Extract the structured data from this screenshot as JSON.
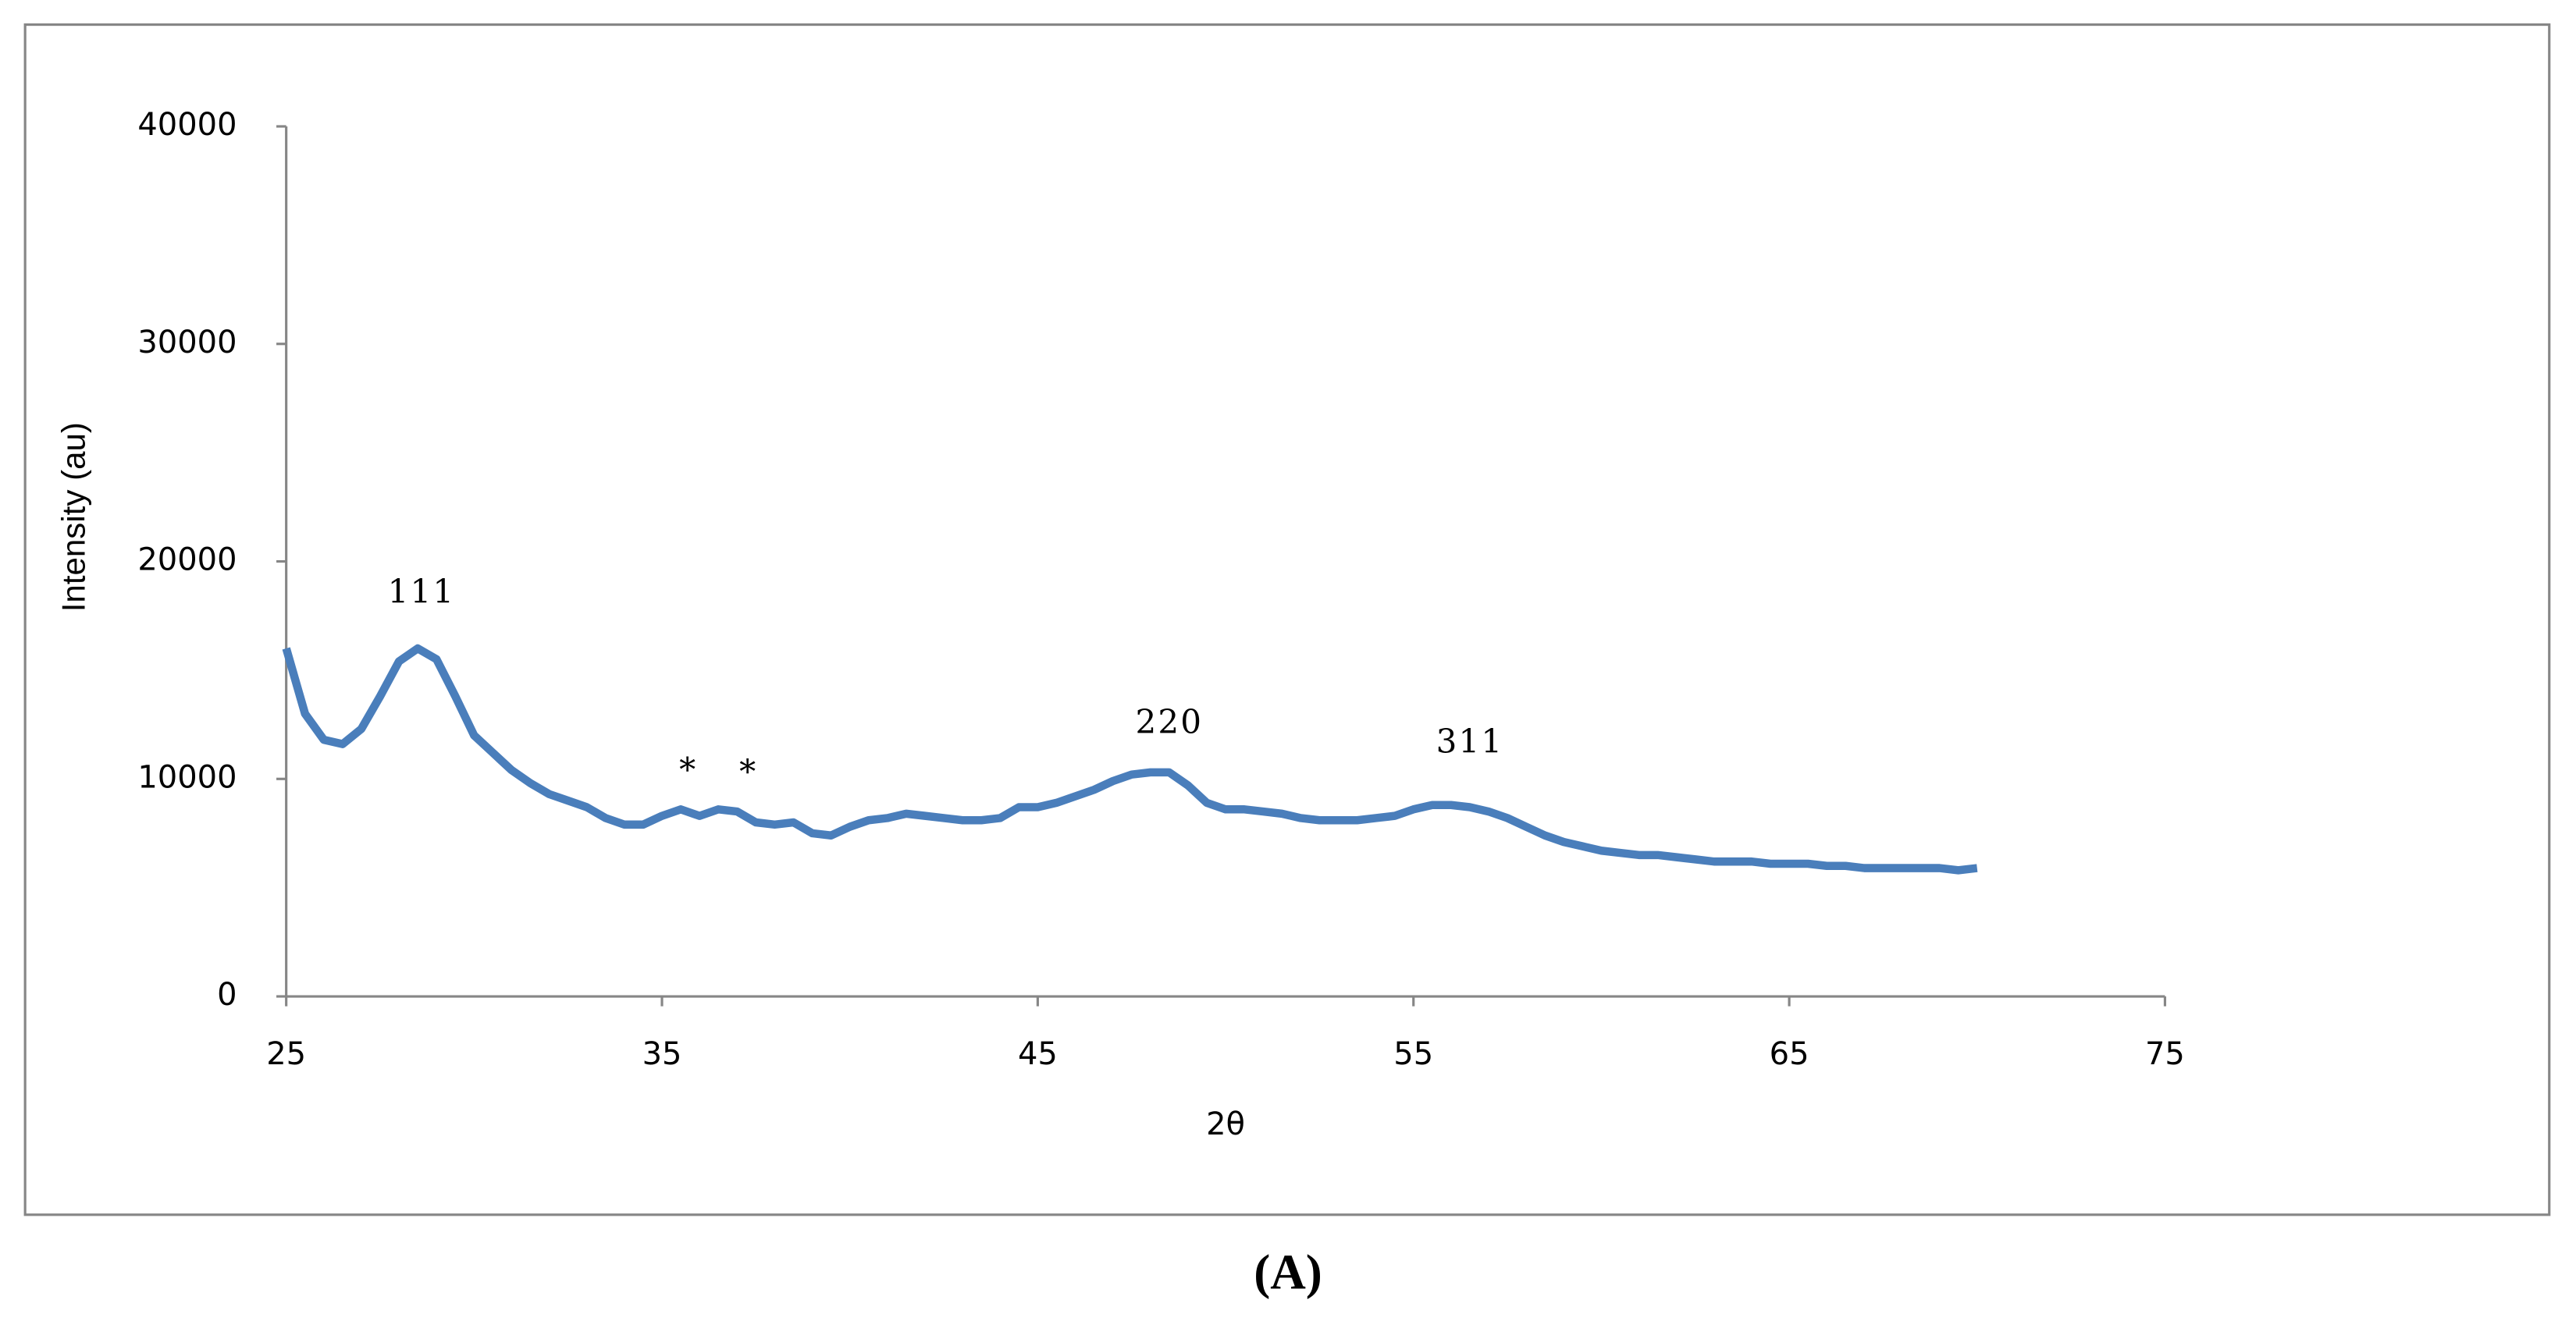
{
  "chart_data": {
    "type": "line",
    "xlabel": "2θ",
    "ylabel": "Intensity (au)",
    "x": [
      25,
      25.5,
      26,
      26.5,
      27,
      27.5,
      28,
      28.5,
      29,
      29.5,
      30,
      30.5,
      31,
      31.5,
      32,
      32.5,
      33,
      33.5,
      34,
      34.5,
      35,
      35.5,
      36,
      36.5,
      37,
      37.5,
      38,
      38.5,
      39,
      39.5,
      40,
      40.5,
      41,
      41.5,
      42,
      42.5,
      43,
      43.5,
      44,
      44.5,
      45,
      45.5,
      46,
      46.5,
      47,
      47.5,
      48,
      48.5,
      49,
      49.5,
      50,
      50.5,
      51,
      51.5,
      52,
      52.5,
      53,
      53.5,
      54,
      54.5,
      55,
      55.5,
      56,
      56.5,
      57,
      57.5,
      58,
      58.5,
      59,
      59.5,
      60,
      60.5,
      61,
      61.5,
      62,
      62.5,
      63,
      63.5,
      64,
      64.5,
      65,
      65.5,
      66,
      66.5,
      67,
      67.5,
      68,
      68.5,
      69,
      69.5,
      70
    ],
    "series": [
      {
        "color": "#4a7ebb",
        "values": [
          16000,
          13000,
          11800,
          11600,
          12300,
          13800,
          15400,
          16000,
          15500,
          13800,
          12000,
          11200,
          10400,
          9800,
          9300,
          9000,
          8700,
          8200,
          7900,
          7900,
          8300,
          8600,
          8300,
          8600,
          8500,
          8000,
          7900,
          8000,
          7500,
          7400,
          7800,
          8100,
          8200,
          8400,
          8300,
          8200,
          8100,
          8100,
          8200,
          8700,
          8700,
          8900,
          9200,
          9500,
          9900,
          10200,
          10300,
          10300,
          9700,
          8900,
          8600,
          8600,
          8500,
          8400,
          8200,
          8100,
          8100,
          8100,
          8200,
          8300,
          8600,
          8800,
          8800,
          8700,
          8500,
          8200,
          7800,
          7400,
          7100,
          6900,
          6700,
          6600,
          6500,
          6500,
          6400,
          6300,
          6200,
          6200,
          6200,
          6100,
          6100,
          6100,
          6000,
          6000,
          5900,
          5900,
          5900,
          5900,
          5900,
          5800,
          5900
        ]
      }
    ],
    "annotations": [
      {
        "text": "111",
        "x": 28.6,
        "y": 18500
      },
      {
        "text": "*",
        "x": 35.7,
        "y": 10300
      },
      {
        "text": "*",
        "x": 37.3,
        "y": 10200
      },
      {
        "text": "220",
        "x": 48.5,
        "y": 12500
      },
      {
        "text": "311",
        "x": 56.5,
        "y": 11600
      }
    ],
    "xlim": [
      25,
      75
    ],
    "xticks": [
      25,
      35,
      45,
      55,
      65,
      75
    ],
    "ylim": [
      0,
      40000
    ],
    "yticks": [
      0,
      10000,
      20000,
      30000,
      40000
    ],
    "grid": false
  },
  "caption": "(A)"
}
